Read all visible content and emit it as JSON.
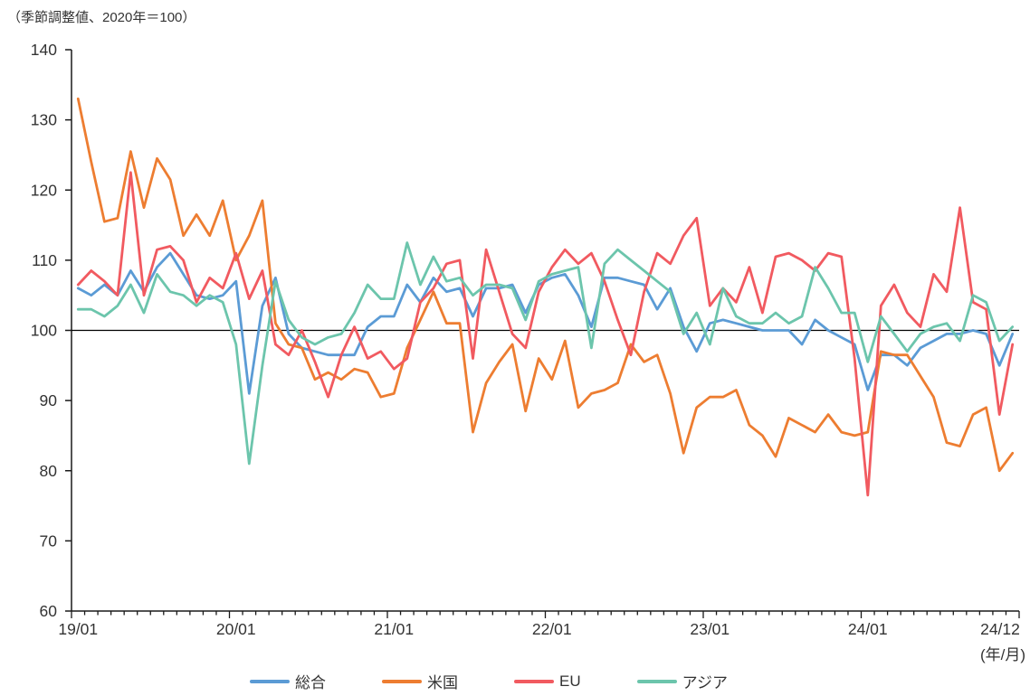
{
  "page": {
    "title": "（季節調整値、2020年＝100）",
    "x_unit_label": "(年/月)"
  },
  "chart_data": {
    "type": "line",
    "title": "（季節調整値、2020年＝100）",
    "x_range": "19/01 to 24/12, monthly, 72 points",
    "x_axis_unit": "(年/月)",
    "ylim": [
      60,
      140
    ],
    "y_ticks": [
      60,
      70,
      80,
      90,
      100,
      110,
      120,
      130,
      140
    ],
    "reference_line": 100,
    "grid": "none",
    "legend_position": "bottom",
    "x_ticks": [
      {
        "label": "19/01",
        "month_index": 0
      },
      {
        "label": "20/01",
        "month_index": 12
      },
      {
        "label": "21/01",
        "month_index": 24
      },
      {
        "label": "22/01",
        "month_index": 36
      },
      {
        "label": "23/01",
        "month_index": 48
      },
      {
        "label": "24/01",
        "month_index": 60
      },
      {
        "label": "24/12",
        "month_index": 71
      }
    ],
    "series": [
      {
        "name": "総合",
        "color": "#5B9BD5",
        "values": [
          106,
          105,
          106.5,
          105,
          108.5,
          105.5,
          109,
          111,
          108,
          105,
          104.5,
          105,
          107,
          91,
          103.5,
          107.5,
          99.5,
          97.5,
          97,
          96.5,
          96.5,
          96.5,
          100.5,
          102,
          102,
          106.5,
          104,
          107.5,
          105.5,
          106,
          102,
          106,
          106,
          106.5,
          102.5,
          106.5,
          107.5,
          108,
          105,
          100.5,
          107.5,
          107.5,
          107,
          106.5,
          103,
          106,
          100.5,
          97,
          101,
          101.5,
          101,
          100.5,
          100,
          100,
          100,
          98,
          101.5,
          100,
          99,
          98,
          91.5,
          96.5,
          96.5,
          95,
          97.5,
          98.5,
          99.5,
          99.5,
          100,
          99.5,
          95,
          99.5
        ]
      },
      {
        "name": "米国",
        "color": "#ED7D31",
        "values": [
          133,
          124,
          115.5,
          116,
          125.5,
          117.5,
          124.5,
          121.5,
          113.5,
          116.5,
          113.5,
          118.5,
          110,
          113.5,
          118.5,
          101,
          98,
          97.5,
          93,
          94,
          93,
          94.5,
          94,
          90.5,
          91,
          97.5,
          101.5,
          105.5,
          101,
          101,
          85.5,
          92.5,
          95.5,
          98,
          88.5,
          96,
          93,
          98.5,
          89,
          91,
          91.5,
          92.5,
          98,
          95.5,
          96.5,
          91,
          82.5,
          89,
          90.5,
          90.5,
          91.5,
          86.5,
          85,
          82,
          87.5,
          86.5,
          85.5,
          88,
          85.5,
          85,
          85.5,
          97,
          96.5,
          96.5,
          93.5,
          90.5,
          84,
          83.5,
          88,
          89,
          80,
          82.5
        ]
      },
      {
        "name": "EU",
        "color": "#F15A60",
        "values": [
          106.5,
          108.5,
          107,
          105,
          122.5,
          105,
          111.5,
          112,
          110,
          104,
          107.5,
          106,
          111,
          104.5,
          108.5,
          98,
          96.5,
          100,
          95.5,
          90.5,
          96.5,
          100.5,
          96,
          97,
          94.5,
          96,
          104,
          106,
          109.5,
          110,
          96,
          111.5,
          105.5,
          99.5,
          97.5,
          105.5,
          109,
          111.5,
          109.5,
          111,
          107,
          101.5,
          96.5,
          105.5,
          111,
          109.5,
          113.5,
          116,
          103.5,
          106,
          104,
          109,
          102.5,
          110.5,
          111,
          110,
          108.5,
          111,
          110.5,
          96,
          76.5,
          103.5,
          106.5,
          102.5,
          100.5,
          108,
          105.5,
          117.5,
          104,
          103,
          88,
          98
        ]
      },
      {
        "name": "アジア",
        "color": "#6CC5AC",
        "values": [
          103,
          103,
          102,
          103.5,
          106.5,
          102.5,
          108,
          105.5,
          105,
          103.5,
          105,
          104,
          98,
          81,
          95,
          107,
          101.5,
          99,
          98,
          99,
          99.5,
          102.5,
          106.5,
          104.5,
          104.5,
          112.5,
          106.5,
          110.5,
          107,
          107.5,
          105,
          106.5,
          106.5,
          106,
          101.5,
          107,
          108,
          108.5,
          109,
          97.5,
          109.5,
          111.5,
          110,
          108.5,
          107,
          105.5,
          99.5,
          102.5,
          98,
          106,
          102,
          101,
          101,
          102.5,
          101,
          102,
          109,
          106,
          102.5,
          102.5,
          95.5,
          102,
          99.5,
          97,
          99.5,
          100.5,
          101,
          98.5,
          105,
          104,
          98.5,
          100.5
        ]
      }
    ]
  }
}
